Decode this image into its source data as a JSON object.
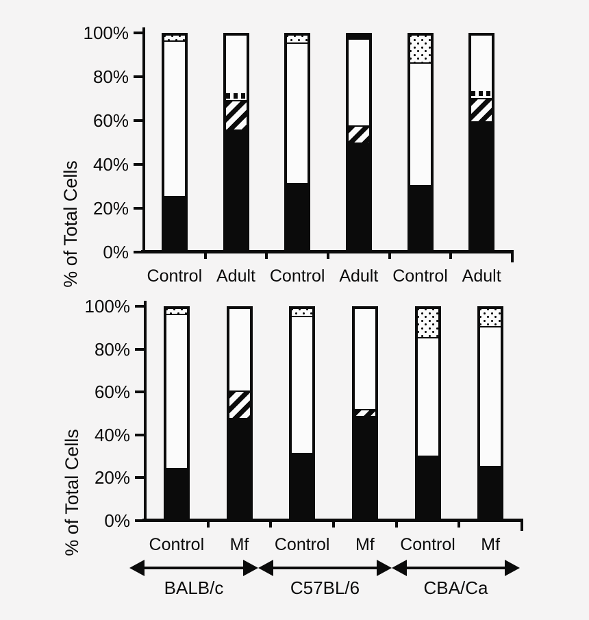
{
  "figure": {
    "background": "#f5f4f4",
    "ink": "#0b0b0b",
    "bar_fill": "#fbfbfb",
    "pattern_names": [
      "black: solid fill",
      "white: open fill",
      "hatch: diagonal stripes",
      "vstripe: vertical dashes",
      "stipple: dots"
    ]
  },
  "chart_data": [
    {
      "type": "bar",
      "subtype": "stacked-percent",
      "id": "top-adult-chart",
      "ylabel": "% of Total Cells",
      "ylim": [
        0,
        100
      ],
      "yticks": [
        "100%",
        "80%",
        "60%",
        "40%",
        "20%",
        "0%"
      ],
      "ytick_values": [
        100,
        80,
        60,
        40,
        20,
        0
      ],
      "grid": false,
      "legend": "none",
      "categories": [
        "Control",
        "Adult",
        "Control",
        "Adult",
        "Control",
        "Adult"
      ],
      "bars": [
        {
          "category": "Control",
          "strain": "BALB/c",
          "segments": [
            {
              "pattern": "black",
              "value": 25
            },
            {
              "pattern": "white",
              "value": 72
            },
            {
              "pattern": "stipple",
              "value": 3
            }
          ]
        },
        {
          "category": "Adult",
          "strain": "BALB/c",
          "segments": [
            {
              "pattern": "black",
              "value": 56
            },
            {
              "pattern": "hatch",
              "value": 14
            },
            {
              "pattern": "vstripe",
              "value": 3
            },
            {
              "pattern": "white",
              "value": 27
            }
          ]
        },
        {
          "category": "Control",
          "strain": "C57BL/6",
          "segments": [
            {
              "pattern": "black",
              "value": 31
            },
            {
              "pattern": "white",
              "value": 65
            },
            {
              "pattern": "stipple",
              "value": 4
            }
          ]
        },
        {
          "category": "Adult",
          "strain": "C57BL/6",
          "segments": [
            {
              "pattern": "black",
              "value": 50
            },
            {
              "pattern": "hatch",
              "value": 8
            },
            {
              "pattern": "white",
              "value": 40
            },
            {
              "pattern": "black",
              "value": 2
            }
          ]
        },
        {
          "category": "Control",
          "strain": "CBA/Ca",
          "segments": [
            {
              "pattern": "black",
              "value": 30
            },
            {
              "pattern": "white",
              "value": 57
            },
            {
              "pattern": "stipple",
              "value": 13
            }
          ]
        },
        {
          "category": "Adult",
          "strain": "CBA/Ca",
          "segments": [
            {
              "pattern": "black",
              "value": 60
            },
            {
              "pattern": "hatch",
              "value": 11
            },
            {
              "pattern": "vstripe",
              "value": 3
            },
            {
              "pattern": "white",
              "value": 26
            }
          ]
        }
      ]
    },
    {
      "type": "bar",
      "subtype": "stacked-percent",
      "id": "bottom-mf-chart",
      "ylabel": "% of Total Cells",
      "ylim": [
        0,
        100
      ],
      "yticks": [
        "100%",
        "80%",
        "60%",
        "40%",
        "20%",
        "0%"
      ],
      "ytick_values": [
        100,
        80,
        60,
        40,
        20,
        0
      ],
      "grid": false,
      "legend": "none",
      "categories": [
        "Control",
        "Mf",
        "Control",
        "Mf",
        "Control",
        "Mf"
      ],
      "bars": [
        {
          "category": "Control",
          "strain": "BALB/c",
          "segments": [
            {
              "pattern": "black",
              "value": 24
            },
            {
              "pattern": "white",
              "value": 73
            },
            {
              "pattern": "stipple",
              "value": 3
            }
          ]
        },
        {
          "category": "Mf",
          "strain": "BALB/c",
          "segments": [
            {
              "pattern": "black",
              "value": 48
            },
            {
              "pattern": "hatch",
              "value": 13
            },
            {
              "pattern": "white",
              "value": 39
            }
          ]
        },
        {
          "category": "Control",
          "strain": "C57BL/6",
          "segments": [
            {
              "pattern": "black",
              "value": 31
            },
            {
              "pattern": "white",
              "value": 65
            },
            {
              "pattern": "stipple",
              "value": 4
            }
          ]
        },
        {
          "category": "Mf",
          "strain": "C57BL/6",
          "segments": [
            {
              "pattern": "black",
              "value": 49
            },
            {
              "pattern": "hatch",
              "value": 3
            },
            {
              "pattern": "white",
              "value": 48
            }
          ]
        },
        {
          "category": "Control",
          "strain": "CBA/Ca",
          "segments": [
            {
              "pattern": "black",
              "value": 30
            },
            {
              "pattern": "white",
              "value": 56
            },
            {
              "pattern": "stipple",
              "value": 14
            }
          ]
        },
        {
          "category": "Mf",
          "strain": "CBA/Ca",
          "segments": [
            {
              "pattern": "black",
              "value": 25
            },
            {
              "pattern": "white",
              "value": 66
            },
            {
              "pattern": "stipple",
              "value": 9
            }
          ]
        }
      ],
      "group_axis": {
        "style": "double-headed-arrows",
        "groups": [
          {
            "label": "BALB/c",
            "spans": [
              "Control",
              "Mf"
            ]
          },
          {
            "label": "C57BL/6",
            "spans": [
              "Control",
              "Mf"
            ]
          },
          {
            "label": "CBA/Ca",
            "spans": [
              "Control",
              "Mf"
            ]
          }
        ]
      }
    }
  ]
}
